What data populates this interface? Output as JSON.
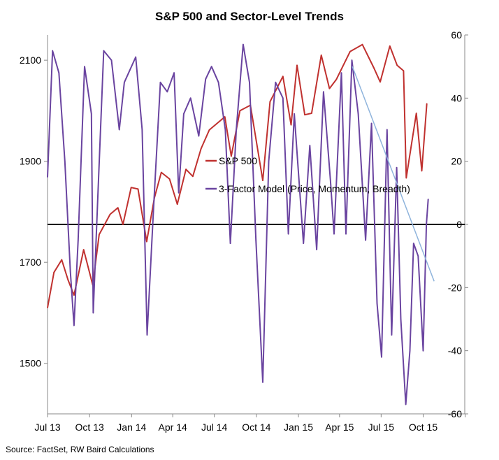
{
  "chart_data": {
    "type": "line",
    "title": "S&P 500 and Sector-Level Trends",
    "source": "Source: FactSet, RW Baird Calculations",
    "x_tick_labels": [
      "Jul 13",
      "Oct 13",
      "Jan 14",
      "Apr 14",
      "Jul 14",
      "Oct 14",
      "Jan 15",
      "Apr 15",
      "Jul 15",
      "Oct 15"
    ],
    "x_range": [
      "2013-07-01",
      "2015-12-31"
    ],
    "left_axis": {
      "ticks": [
        "1500",
        "1700",
        "1900",
        "2100"
      ],
      "ylim": [
        1400,
        2150
      ]
    },
    "right_axis": {
      "ticks": [
        "60",
        "40",
        "20",
        "0",
        "-20",
        "-40",
        "-60"
      ],
      "ylim": [
        -60,
        60
      ]
    },
    "grid": false,
    "zero_line": 0,
    "legend": [
      "S&P 500",
      "3-Factor Model (Price, Momentum, Breadth)"
    ],
    "colors": {
      "sp500": "#c0312f",
      "model": "#6a44a0",
      "trend": "#8fb4dc",
      "zero": "#000000"
    },
    "series": [
      {
        "name": "S&P 500",
        "axis": "left",
        "points": [
          [
            "2013-07-01",
            1610
          ],
          [
            "2013-07-15",
            1680
          ],
          [
            "2013-08-01",
            1705
          ],
          [
            "2013-08-15",
            1665
          ],
          [
            "2013-08-28",
            1635
          ],
          [
            "2013-09-18",
            1725
          ],
          [
            "2013-10-08",
            1655
          ],
          [
            "2013-10-22",
            1755
          ],
          [
            "2013-11-15",
            1795
          ],
          [
            "2013-12-02",
            1808
          ],
          [
            "2013-12-13",
            1775
          ],
          [
            "2013-12-31",
            1848
          ],
          [
            "2014-01-15",
            1845
          ],
          [
            "2014-02-03",
            1741
          ],
          [
            "2014-02-20",
            1828
          ],
          [
            "2014-03-07",
            1878
          ],
          [
            "2014-03-25",
            1865
          ],
          [
            "2014-04-11",
            1815
          ],
          [
            "2014-04-30",
            1884
          ],
          [
            "2014-05-15",
            1870
          ],
          [
            "2014-06-02",
            1925
          ],
          [
            "2014-06-20",
            1962
          ],
          [
            "2014-07-24",
            1988
          ],
          [
            "2014-08-07",
            1910
          ],
          [
            "2014-08-26",
            2000
          ],
          [
            "2014-09-18",
            2011
          ],
          [
            "2014-10-15",
            1862
          ],
          [
            "2014-10-31",
            2018
          ],
          [
            "2014-11-28",
            2068
          ],
          [
            "2014-12-16",
            1972
          ],
          [
            "2014-12-29",
            2090
          ],
          [
            "2015-01-15",
            1992
          ],
          [
            "2015-01-30",
            1995
          ],
          [
            "2015-02-20",
            2110
          ],
          [
            "2015-03-10",
            2044
          ],
          [
            "2015-03-25",
            2062
          ],
          [
            "2015-04-24",
            2117
          ],
          [
            "2015-05-21",
            2131
          ],
          [
            "2015-06-15",
            2085
          ],
          [
            "2015-06-29",
            2057
          ],
          [
            "2015-07-20",
            2128
          ],
          [
            "2015-08-05",
            2090
          ],
          [
            "2015-08-19",
            2079
          ],
          [
            "2015-08-25",
            1867
          ],
          [
            "2015-09-16",
            1995
          ],
          [
            "2015-09-28",
            1881
          ],
          [
            "2015-10-09",
            2014
          ]
        ]
      },
      {
        "name": "3-Factor Model (Price, Momentum, Breadth)",
        "axis": "right",
        "points": [
          [
            "2013-07-01",
            15
          ],
          [
            "2013-07-12",
            55
          ],
          [
            "2013-07-26",
            48
          ],
          [
            "2013-08-08",
            20
          ],
          [
            "2013-08-20",
            -15
          ],
          [
            "2013-08-28",
            -32
          ],
          [
            "2013-09-06",
            -5
          ],
          [
            "2013-09-20",
            50
          ],
          [
            "2013-10-05",
            35
          ],
          [
            "2013-10-09",
            -28
          ],
          [
            "2013-10-18",
            5
          ],
          [
            "2013-11-01",
            55
          ],
          [
            "2013-11-18",
            52
          ],
          [
            "2013-12-05",
            30
          ],
          [
            "2013-12-16",
            45
          ],
          [
            "2014-01-10",
            53
          ],
          [
            "2014-01-24",
            30
          ],
          [
            "2014-02-04",
            -35
          ],
          [
            "2014-02-18",
            5
          ],
          [
            "2014-03-05",
            45
          ],
          [
            "2014-03-20",
            42
          ],
          [
            "2014-04-04",
            48
          ],
          [
            "2014-04-14",
            10
          ],
          [
            "2014-04-25",
            35
          ],
          [
            "2014-05-10",
            40
          ],
          [
            "2014-05-28",
            28
          ],
          [
            "2014-06-12",
            46
          ],
          [
            "2014-06-25",
            50
          ],
          [
            "2014-07-10",
            45
          ],
          [
            "2014-07-25",
            30
          ],
          [
            "2014-08-05",
            -6
          ],
          [
            "2014-08-18",
            30
          ],
          [
            "2014-09-02",
            57
          ],
          [
            "2014-09-16",
            45
          ],
          [
            "2014-09-30",
            -5
          ],
          [
            "2014-10-15",
            -50
          ],
          [
            "2014-10-28",
            20
          ],
          [
            "2014-11-12",
            45
          ],
          [
            "2014-11-28",
            40
          ],
          [
            "2014-12-10",
            -3
          ],
          [
            "2014-12-23",
            35
          ],
          [
            "2015-01-12",
            -6
          ],
          [
            "2015-01-26",
            25
          ],
          [
            "2015-02-10",
            -8
          ],
          [
            "2015-02-25",
            42
          ],
          [
            "2015-03-12",
            14
          ],
          [
            "2015-03-20",
            -3
          ],
          [
            "2015-04-05",
            48
          ],
          [
            "2015-04-15",
            -3
          ],
          [
            "2015-04-28",
            52
          ],
          [
            "2015-05-12",
            35
          ],
          [
            "2015-05-28",
            -5
          ],
          [
            "2015-06-10",
            32
          ],
          [
            "2015-06-22",
            -25
          ],
          [
            "2015-07-02",
            -42
          ],
          [
            "2015-07-14",
            30
          ],
          [
            "2015-07-24",
            -35
          ],
          [
            "2015-08-04",
            18
          ],
          [
            "2015-08-13",
            -30
          ],
          [
            "2015-08-24",
            -57
          ],
          [
            "2015-09-02",
            -40
          ],
          [
            "2015-09-10",
            -6
          ],
          [
            "2015-09-20",
            -10
          ],
          [
            "2015-10-01",
            -40
          ],
          [
            "2015-10-08",
            0
          ],
          [
            "2015-10-12",
            8
          ]
        ]
      }
    ],
    "trendline": {
      "from": [
        "2015-04-29",
        50
      ],
      "to": [
        "2015-10-25",
        -18
      ]
    }
  }
}
